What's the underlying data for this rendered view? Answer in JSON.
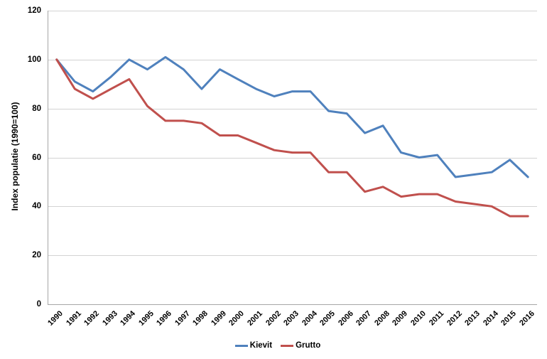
{
  "chart_data": {
    "type": "line",
    "title": "",
    "ylabel": "Index populatie (1990=100)",
    "xlabel": "",
    "ylim": [
      0,
      120
    ],
    "yticks": [
      0,
      20,
      40,
      60,
      80,
      100,
      120
    ],
    "grid": true,
    "legend_position": "bottom-center",
    "categories": [
      "1990",
      "1991",
      "1992",
      "1993",
      "1994",
      "1995",
      "1996",
      "1997",
      "1998",
      "1999",
      "2000",
      "2001",
      "2002",
      "2003",
      "2004",
      "2005",
      "2006",
      "2007",
      "2008",
      "2009",
      "2010",
      "2011",
      "2012",
      "2013",
      "2014",
      "2015",
      "2016"
    ],
    "series": [
      {
        "name": "Kievit",
        "color": "#4F81BD",
        "values": [
          100,
          91,
          87,
          93,
          100,
          96,
          101,
          96,
          88,
          96,
          92,
          88,
          85,
          87,
          87,
          79,
          78,
          70,
          73,
          62,
          60,
          61,
          52,
          53,
          54,
          59,
          52
        ]
      },
      {
        "name": "Grutto",
        "color": "#C0504D",
        "values": [
          100,
          88,
          84,
          88,
          92,
          81,
          75,
          75,
          74,
          69,
          69,
          66,
          63,
          62,
          62,
          54,
          54,
          46,
          48,
          44,
          45,
          45,
          42,
          41,
          40,
          36,
          36
        ]
      }
    ]
  },
  "colors": {
    "background": "#FFFFFF",
    "gridline": "#D3D3D3",
    "axis": "#A6A6A6",
    "text": "#000000"
  }
}
